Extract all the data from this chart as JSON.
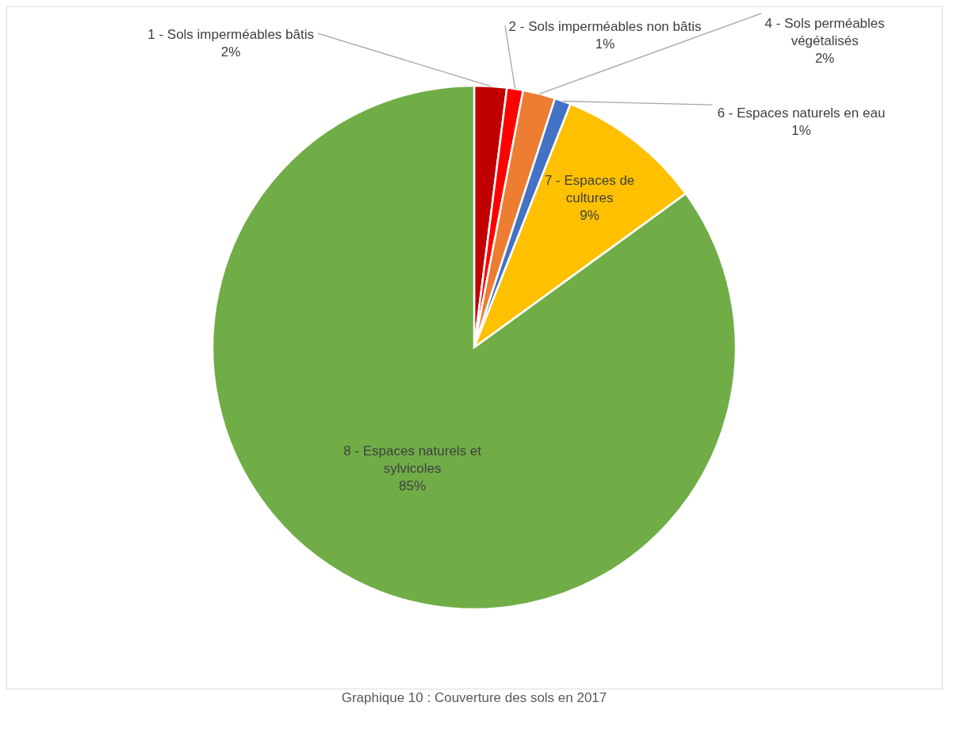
{
  "chart_data": {
    "type": "pie",
    "title": "Graphique 10 : Couverture des sols en 2017",
    "categories": [
      "1 - Sols imperméables bâtis",
      "2 - Sols imperméables non bâtis",
      "4 - Sols perméables végétalisés",
      "6 - Espaces naturels en eau",
      "7 - Espaces de cultures",
      "8 - Espaces naturels et sylvicoles"
    ],
    "values": [
      2,
      1,
      2,
      1,
      9,
      85
    ],
    "value_labels": [
      "2%",
      "1%",
      "2%",
      "1%",
      "9%",
      "85%"
    ],
    "colors": [
      "#c00000",
      "#ff0000",
      "#ed7d31",
      "#4472c4",
      "#ffc000",
      "#70ad47"
    ]
  }
}
